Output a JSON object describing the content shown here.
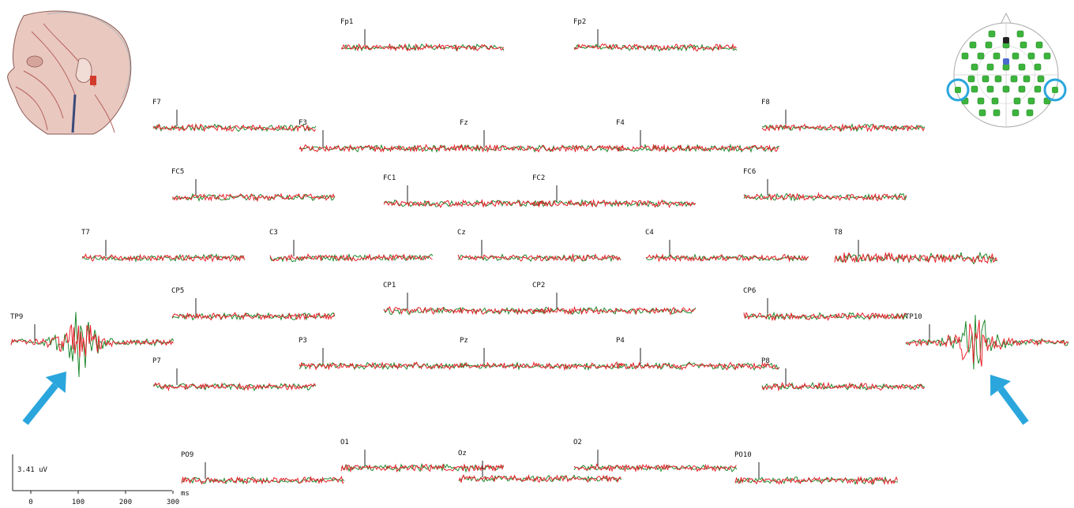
{
  "chart_data": {
    "type": "line",
    "scale": {
      "amplitude_label": "3.41 uV",
      "time_unit": "ms",
      "time_ticks": [
        0,
        100,
        200,
        300
      ]
    },
    "colors": {
      "series_a": "#e8202a",
      "series_b": "#1f8a2e",
      "highlight": "#2aa6dd",
      "electrode": "#3cb43c"
    },
    "channels": [
      {
        "name": "Fp1",
        "kind": "normal"
      },
      {
        "name": "Fp2",
        "kind": "normal"
      },
      {
        "name": "F7",
        "kind": "normal"
      },
      {
        "name": "F3",
        "kind": "normal"
      },
      {
        "name": "Fz",
        "kind": "normal"
      },
      {
        "name": "F4",
        "kind": "normal"
      },
      {
        "name": "F8",
        "kind": "normal"
      },
      {
        "name": "FC5",
        "kind": "normal"
      },
      {
        "name": "FC1",
        "kind": "normal"
      },
      {
        "name": "FC2",
        "kind": "normal"
      },
      {
        "name": "FC6",
        "kind": "normal"
      },
      {
        "name": "T7",
        "kind": "normal"
      },
      {
        "name": "C3",
        "kind": "normal"
      },
      {
        "name": "Cz",
        "kind": "normal"
      },
      {
        "name": "C4",
        "kind": "normal"
      },
      {
        "name": "T8",
        "kind": "normal"
      },
      {
        "name": "CP5",
        "kind": "normal"
      },
      {
        "name": "CP1",
        "kind": "normal"
      },
      {
        "name": "CP2",
        "kind": "normal"
      },
      {
        "name": "CP6",
        "kind": "normal"
      },
      {
        "name": "TP9",
        "kind": "burst"
      },
      {
        "name": "TP10",
        "kind": "burst"
      },
      {
        "name": "P7",
        "kind": "normal"
      },
      {
        "name": "P3",
        "kind": "normal"
      },
      {
        "name": "Pz",
        "kind": "normal"
      },
      {
        "name": "P4",
        "kind": "normal"
      },
      {
        "name": "P8",
        "kind": "normal"
      },
      {
        "name": "PO9",
        "kind": "normal"
      },
      {
        "name": "O1",
        "kind": "normal"
      },
      {
        "name": "Oz",
        "kind": "normal"
      },
      {
        "name": "O2",
        "kind": "normal"
      },
      {
        "name": "PO10",
        "kind": "normal"
      }
    ],
    "head_map": {
      "highlighted": [
        "TP9",
        "TP10"
      ]
    },
    "illustration": "head-muscle-anatomy",
    "arrows": [
      "TP9",
      "TP10"
    ]
  }
}
